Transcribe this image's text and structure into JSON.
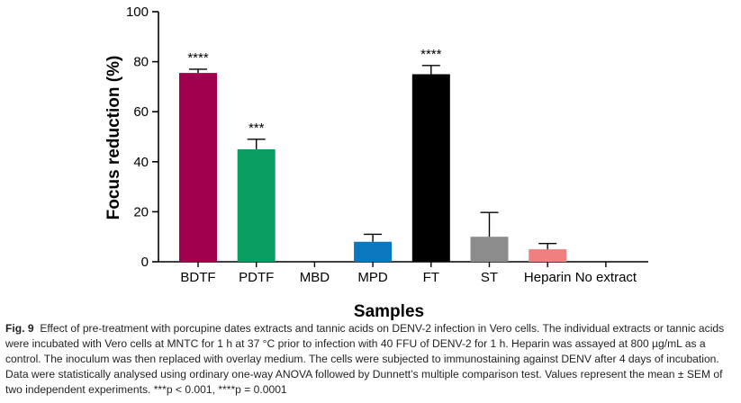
{
  "chart_data": {
    "type": "bar",
    "categories": [
      "BDTF",
      "PDTF",
      "MBD",
      "MPD",
      "FT",
      "ST",
      "Heparin",
      "No extract"
    ],
    "values": [
      75.5,
      45,
      0,
      8,
      75,
      10,
      5,
      0
    ],
    "errors": [
      1.5,
      4,
      0,
      3,
      3.5,
      9.7,
      2.3,
      0
    ],
    "colors": [
      "#a1004f",
      "#0a9e63",
      "#000000",
      "#0a78be",
      "#000000",
      "#8c8c8c",
      "#f08080",
      "#000000"
    ],
    "significance": [
      "****",
      "***",
      "",
      "",
      "****",
      "",
      "",
      ""
    ],
    "xlabel": "Samples",
    "ylabel": "Focus reduction (%)",
    "ylim": [
      0,
      100
    ],
    "yticks": [
      0,
      20,
      40,
      60,
      80,
      100
    ],
    "grid": false,
    "legend": "none"
  },
  "caption": {
    "label": "Fig. 9",
    "text": "Effect of pre-treatment with porcupine dates extracts and tannic acids on DENV-2 infection in Vero cells. The individual extracts or tannic acids were incubated with Vero cells at MNTC for 1 h at 37 °C prior to infection with 40 FFU of DENV-2 for 1 h. Heparin was assayed at 800 µg/mL as a control. The inoculum was then replaced with overlay medium. The cells were subjected to immunostaining against DENV after 4 days of incubation. Data were statistically analysed using ordinary one-way ANOVA followed by Dunnett’s multiple comparison test. Values represent the mean ± SEM of two independent experiments. ***p < 0.001, ****p = 0.0001"
  }
}
